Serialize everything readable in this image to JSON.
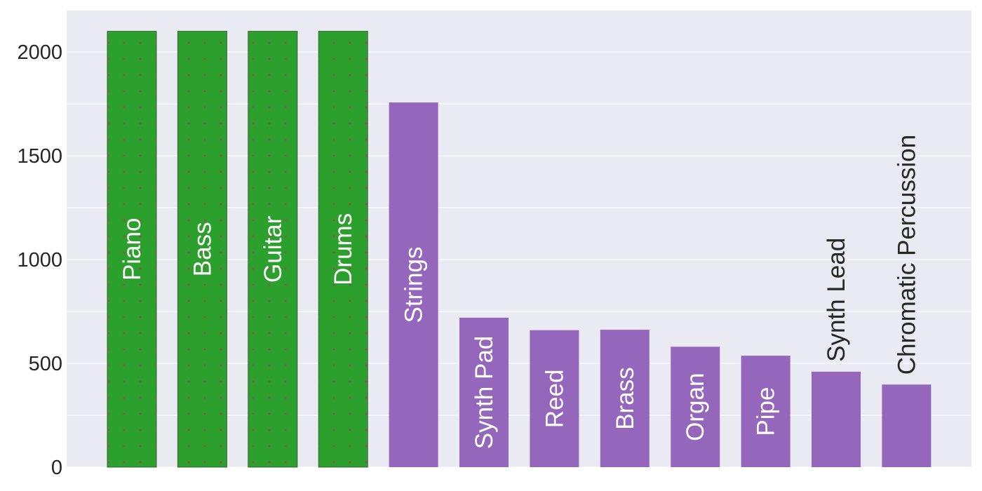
{
  "chart_data": {
    "type": "bar",
    "categories": [
      "Piano",
      "Bass",
      "Guitar",
      "Drums",
      "Strings",
      "Synth Pad",
      "Reed",
      "Brass",
      "Organ",
      "Pipe",
      "Synth Lead",
      "Chromatic Percussion"
    ],
    "values": [
      2100,
      2100,
      2100,
      2100,
      1757,
      720,
      660,
      662,
      580,
      537,
      460,
      398
    ],
    "ylim": [
      0,
      2200
    ],
    "yticks": [
      0,
      500,
      1000,
      1500,
      2000
    ],
    "grid": true,
    "highlight_count": 4,
    "colors": {
      "background": "#eaeaf2",
      "grid": "#ffffff",
      "highlight_bar": "#2ca02c",
      "highlight_edge": "#3e5d3e",
      "highlight_dots": "#8c564b",
      "bar": "#9467bd",
      "inside_label": "#ffffff",
      "outside_label": "#262626",
      "tick_label": "#262626"
    }
  }
}
